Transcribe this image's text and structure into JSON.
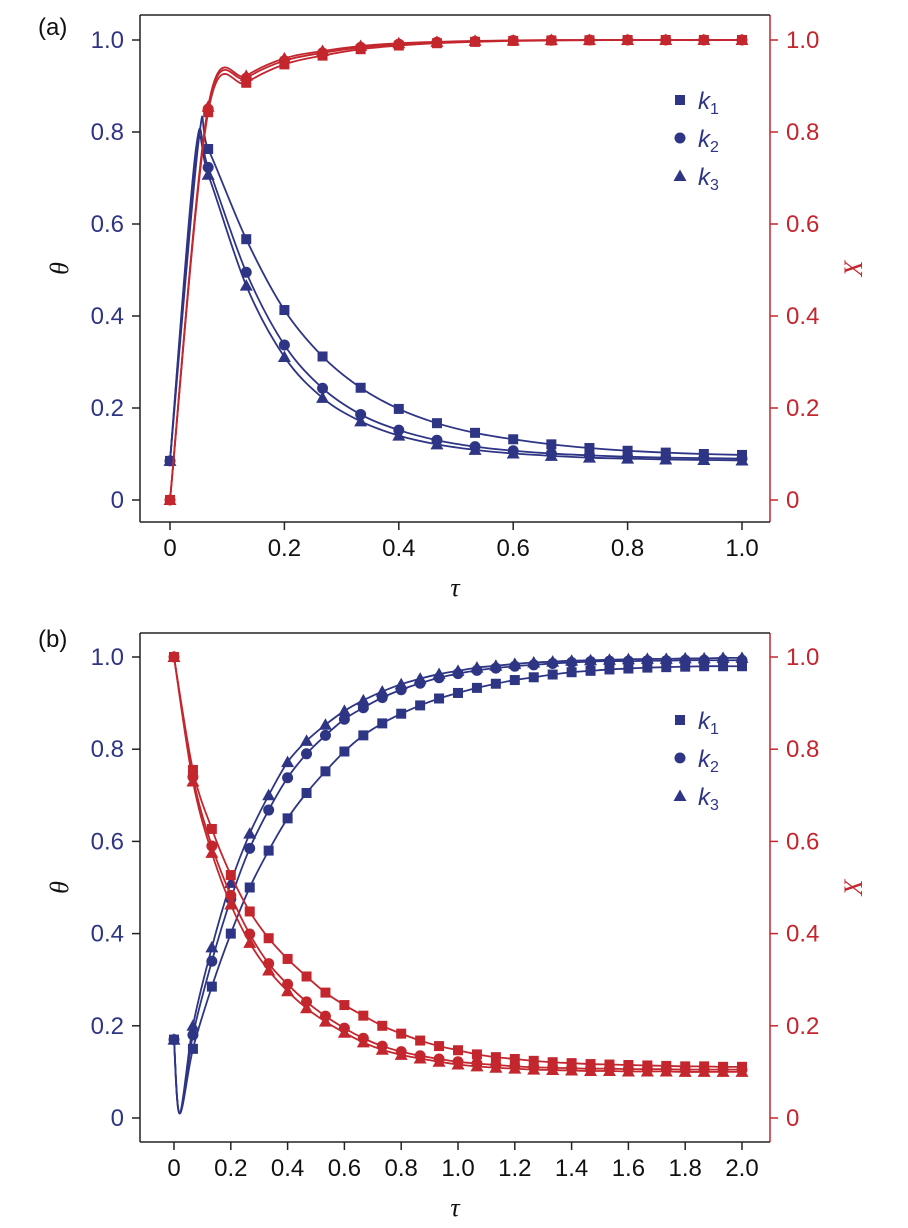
{
  "chart_data": [
    {
      "type": "line",
      "panel_label": "(a)",
      "xlabel": "τ",
      "ylabel_left": "θ",
      "ylabel_right": "X",
      "xlim": [
        0,
        1.0
      ],
      "ylim_left": [
        0,
        1.0
      ],
      "ylim_right": [
        0,
        1.0
      ],
      "x_ticks": [
        "0",
        "0.2",
        "0.4",
        "0.6",
        "0.8",
        "1.0"
      ],
      "y_left_ticks": [
        "0",
        "0.2",
        "0.4",
        "0.6",
        "0.8",
        "1.0"
      ],
      "y_right_ticks": [
        "0",
        "0.2",
        "0.4",
        "0.6",
        "0.8",
        "1.0"
      ],
      "legend": {
        "position": "top-right",
        "entries": [
          {
            "label": "k",
            "sub": "1",
            "marker": "square"
          },
          {
            "label": "k",
            "sub": "2",
            "marker": "circle"
          },
          {
            "label": "k",
            "sub": "3",
            "marker": "triangle"
          }
        ]
      },
      "colors": {
        "theta": "#2e3585",
        "X": "#c4262e"
      },
      "x": [
        0,
        0.0667,
        0.1333,
        0.2,
        0.2667,
        0.3333,
        0.4,
        0.4667,
        0.5333,
        0.6,
        0.6667,
        0.7333,
        0.8,
        0.8667,
        0.9333,
        1.0
      ],
      "series": [
        {
          "name": "θ k1",
          "axis": "left",
          "marker": "square",
          "values": [
            0.085,
            0.763,
            0.567,
            0.413,
            0.312,
            0.244,
            0.198,
            0.167,
            0.146,
            0.132,
            0.121,
            0.113,
            0.107,
            0.103,
            0.1,
            0.098
          ]
        },
        {
          "name": "θ k2",
          "axis": "left",
          "marker": "circle",
          "values": [
            0.085,
            0.723,
            0.495,
            0.337,
            0.243,
            0.186,
            0.152,
            0.13,
            0.116,
            0.107,
            0.101,
            0.097,
            0.094,
            0.092,
            0.091,
            0.09
          ]
        },
        {
          "name": "θ k3",
          "axis": "left",
          "marker": "triangle",
          "values": [
            0.085,
            0.707,
            0.466,
            0.311,
            0.222,
            0.171,
            0.14,
            0.121,
            0.109,
            0.101,
            0.096,
            0.092,
            0.09,
            0.088,
            0.087,
            0.086
          ]
        },
        {
          "name": "X k1",
          "axis": "right",
          "marker": "square",
          "values": [
            0.0,
            0.843,
            0.907,
            0.947,
            0.966,
            0.98,
            0.988,
            0.993,
            0.996,
            0.998,
            0.999,
            0.9995,
            1.0,
            1.0,
            1.0,
            1.0
          ]
        },
        {
          "name": "X k2",
          "axis": "right",
          "marker": "circle",
          "values": [
            0.0,
            0.85,
            0.917,
            0.955,
            0.972,
            0.984,
            0.991,
            0.995,
            0.997,
            0.999,
            0.9995,
            1.0,
            1.0,
            1.0,
            1.0,
            1.0
          ]
        },
        {
          "name": "X k3",
          "axis": "right",
          "marker": "triangle",
          "values": [
            0.0,
            0.855,
            0.922,
            0.96,
            0.976,
            0.987,
            0.993,
            0.996,
            0.998,
            0.999,
            1.0,
            1.0,
            1.0,
            1.0,
            1.0,
            1.0
          ]
        }
      ],
      "peaks": [
        {
          "series": "θ k1",
          "x": 0.05,
          "value": 0.78
        },
        {
          "series": "θ k2",
          "x": 0.045,
          "value": 0.76
        },
        {
          "series": "θ k3",
          "x": 0.045,
          "value": 0.745
        }
      ]
    },
    {
      "type": "line",
      "panel_label": "(b)",
      "xlabel": "τ",
      "ylabel_left": "θ",
      "ylabel_right": "X",
      "xlim": [
        0,
        2.0
      ],
      "ylim_left": [
        0,
        1.0
      ],
      "ylim_right": [
        0,
        1.0
      ],
      "x_ticks": [
        "0",
        "0.2",
        "0.4",
        "0.6",
        "0.8",
        "1.0",
        "1.2",
        "1.4",
        "1.6",
        "1.8",
        "2.0"
      ],
      "y_left_ticks": [
        "0",
        "0.2",
        "0.4",
        "0.6",
        "0.8",
        "1.0"
      ],
      "y_right_ticks": [
        "0",
        "0.2",
        "0.4",
        "0.6",
        "0.8",
        "1.0"
      ],
      "legend": {
        "position": "top-right",
        "entries": [
          {
            "label": "k",
            "sub": "1",
            "marker": "square"
          },
          {
            "label": "k",
            "sub": "2",
            "marker": "circle"
          },
          {
            "label": "k",
            "sub": "3",
            "marker": "triangle"
          }
        ]
      },
      "colors": {
        "theta": "#2e3585",
        "X": "#c4262e"
      },
      "x": [
        0,
        0.0667,
        0.1333,
        0.2,
        0.2667,
        0.3333,
        0.4,
        0.4667,
        0.5333,
        0.6,
        0.6667,
        0.7333,
        0.8,
        0.8667,
        0.9333,
        1.0,
        1.0667,
        1.1333,
        1.2,
        1.2667,
        1.3333,
        1.4,
        1.4667,
        1.5333,
        1.6,
        1.6667,
        1.7333,
        1.8,
        1.8667,
        1.9333,
        2.0
      ],
      "series": [
        {
          "name": "θ k1",
          "axis": "left",
          "marker": "square",
          "values": [
            0.17,
            0.15,
            0.285,
            0.4,
            0.5,
            0.58,
            0.65,
            0.705,
            0.752,
            0.795,
            0.83,
            0.856,
            0.877,
            0.895,
            0.91,
            0.922,
            0.933,
            0.942,
            0.95,
            0.956,
            0.962,
            0.967,
            0.97,
            0.973,
            0.975,
            0.977,
            0.978,
            0.979,
            0.98,
            0.98,
            0.98
          ]
        },
        {
          "name": "θ k2",
          "axis": "left",
          "marker": "circle",
          "values": [
            0.17,
            0.18,
            0.34,
            0.475,
            0.585,
            0.668,
            0.738,
            0.79,
            0.83,
            0.865,
            0.89,
            0.912,
            0.929,
            0.943,
            0.955,
            0.964,
            0.971,
            0.976,
            0.98,
            0.983,
            0.986,
            0.988,
            0.99,
            0.991,
            0.991,
            0.992,
            0.992,
            0.993,
            0.993,
            0.993,
            0.993
          ]
        },
        {
          "name": "θ k3",
          "axis": "left",
          "marker": "triangle",
          "values": [
            0.17,
            0.2,
            0.37,
            0.51,
            0.617,
            0.7,
            0.772,
            0.818,
            0.853,
            0.883,
            0.906,
            0.925,
            0.941,
            0.953,
            0.963,
            0.97,
            0.977,
            0.981,
            0.985,
            0.988,
            0.99,
            0.992,
            0.993,
            0.994,
            0.995,
            0.996,
            0.996,
            0.997,
            0.997,
            0.998,
            0.998
          ]
        },
        {
          "name": "X k1",
          "axis": "right",
          "marker": "square",
          "values": [
            1.0,
            0.755,
            0.627,
            0.527,
            0.448,
            0.39,
            0.345,
            0.307,
            0.272,
            0.245,
            0.222,
            0.2,
            0.183,
            0.168,
            0.156,
            0.147,
            0.138,
            0.132,
            0.128,
            0.124,
            0.121,
            0.119,
            0.117,
            0.116,
            0.115,
            0.114,
            0.113,
            0.112,
            0.112,
            0.111,
            0.111
          ]
        },
        {
          "name": "X k2",
          "axis": "right",
          "marker": "circle",
          "values": [
            1.0,
            0.74,
            0.59,
            0.483,
            0.399,
            0.335,
            0.29,
            0.252,
            0.221,
            0.195,
            0.173,
            0.156,
            0.144,
            0.135,
            0.128,
            0.122,
            0.118,
            0.115,
            0.112,
            0.11,
            0.109,
            0.108,
            0.107,
            0.107,
            0.106,
            0.106,
            0.106,
            0.105,
            0.105,
            0.105,
            0.105
          ]
        },
        {
          "name": "X k3",
          "axis": "right",
          "marker": "triangle",
          "values": [
            1.0,
            0.73,
            0.575,
            0.463,
            0.38,
            0.32,
            0.275,
            0.238,
            0.209,
            0.185,
            0.164,
            0.148,
            0.137,
            0.129,
            0.122,
            0.116,
            0.112,
            0.109,
            0.107,
            0.105,
            0.104,
            0.103,
            0.102,
            0.102,
            0.101,
            0.101,
            0.101,
            0.1,
            0.1,
            0.1,
            0.1
          ]
        }
      ],
      "minima": [
        {
          "series": "θ k1",
          "x": 0.02,
          "value": 0.01
        },
        {
          "series": "θ k2",
          "x": 0.02,
          "value": 0.01
        },
        {
          "series": "θ k3",
          "x": 0.02,
          "value": 0.01
        }
      ]
    }
  ]
}
